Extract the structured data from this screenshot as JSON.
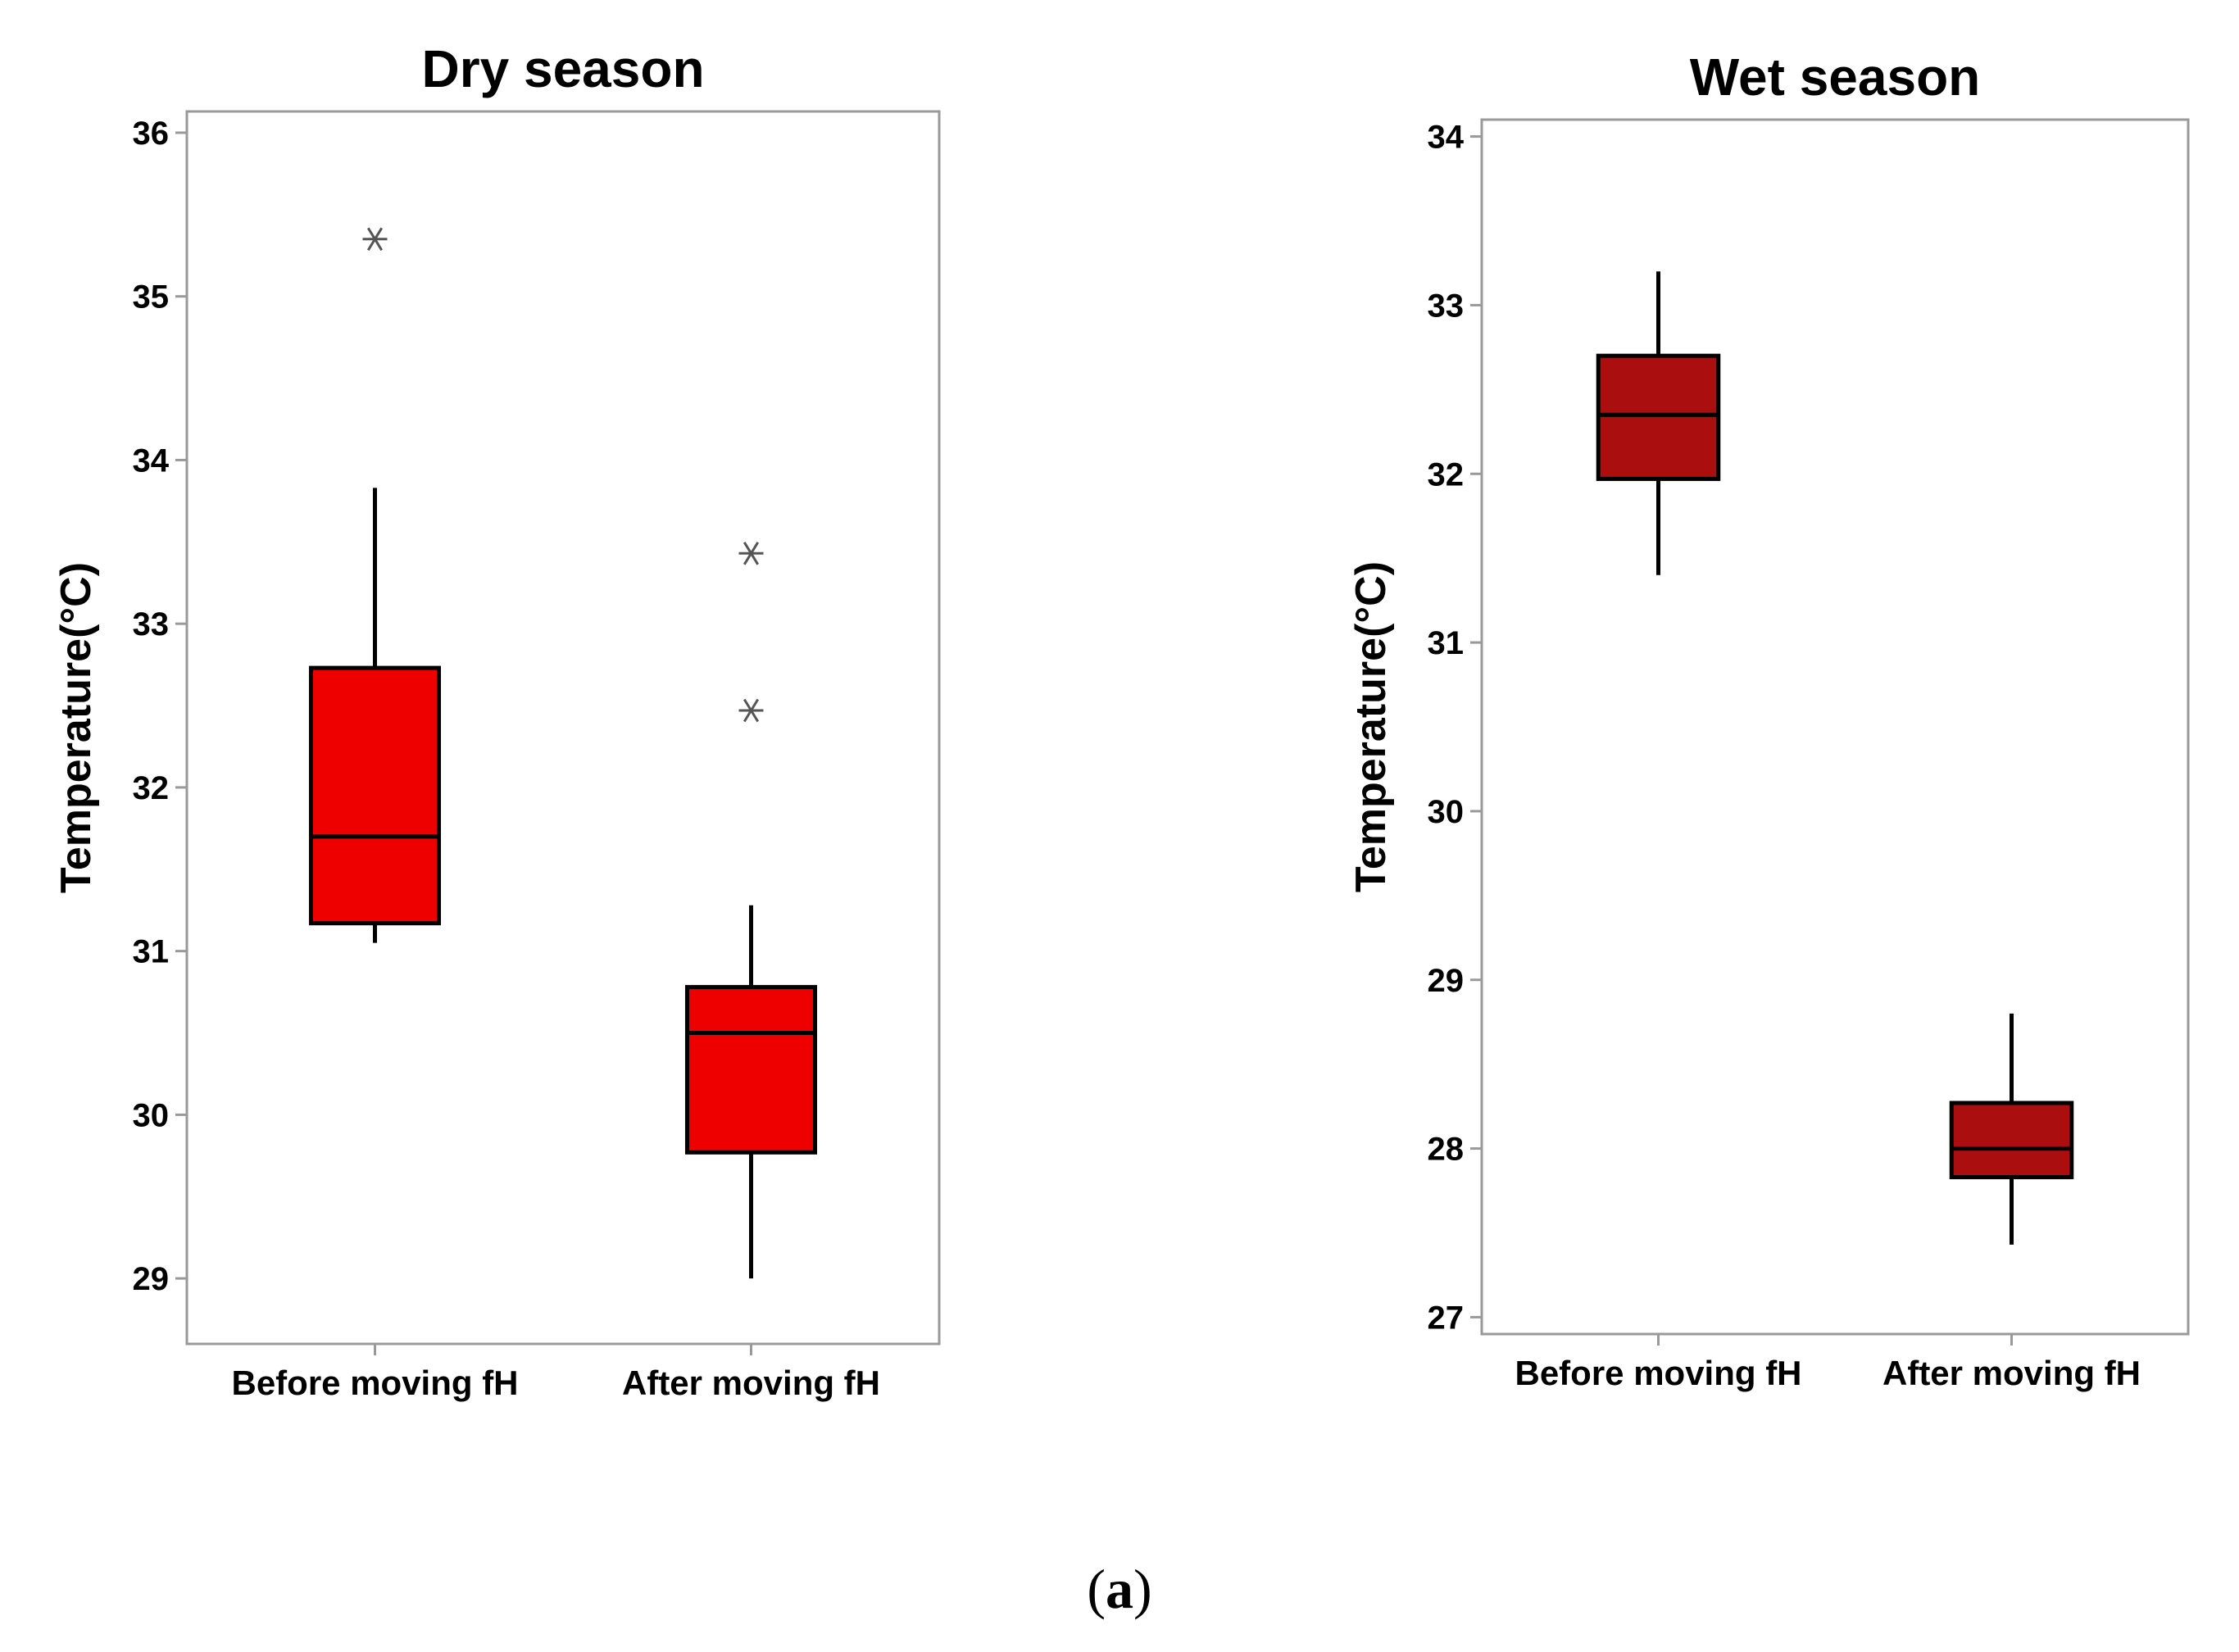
{
  "chart_data": [
    {
      "type": "box",
      "title": "Dry season",
      "ylabel": "Temperature(°C)",
      "xlabel": "",
      "ylim": [
        28.6,
        36.13
      ],
      "yticks": [
        29,
        30,
        31,
        32,
        33,
        34,
        35,
        36
      ],
      "grid": false,
      "box_color": "#EE0000",
      "outlier_color": "#555555",
      "categories": [
        "Before moving fH",
        "After moving fH"
      ],
      "series": [
        {
          "name": "Before moving fH",
          "whisker_low": 31.05,
          "q1": 31.17,
          "median": 31.7,
          "q3": 32.73,
          "whisker_high": 33.83,
          "outliers": [
            35.35
          ]
        },
        {
          "name": "After moving fH",
          "whisker_low": 29.0,
          "q1": 29.77,
          "median": 30.5,
          "q3": 30.78,
          "whisker_high": 31.28,
          "outliers": [
            33.43,
            32.47
          ]
        }
      ]
    },
    {
      "type": "box",
      "title": "Wet season",
      "ylabel": "Temperature(°C)",
      "xlabel": "",
      "ylim": [
        26.9,
        34.1
      ],
      "yticks": [
        27,
        28,
        29,
        30,
        31,
        32,
        33,
        34
      ],
      "grid": false,
      "box_color": "#AA0E0E",
      "outlier_color": "#555555",
      "categories": [
        "Before moving fH",
        "After moving fH"
      ],
      "series": [
        {
          "name": "Before moving fH",
          "whisker_low": 31.4,
          "q1": 31.97,
          "median": 32.35,
          "q3": 32.7,
          "whisker_high": 33.2,
          "outliers": []
        },
        {
          "name": "After moving fH",
          "whisker_low": 27.43,
          "q1": 27.83,
          "median": 28.0,
          "q3": 28.27,
          "whisker_high": 28.8,
          "outliers": []
        }
      ]
    }
  ],
  "caption": {
    "open": "(",
    "letter": "a",
    "close": ")"
  }
}
